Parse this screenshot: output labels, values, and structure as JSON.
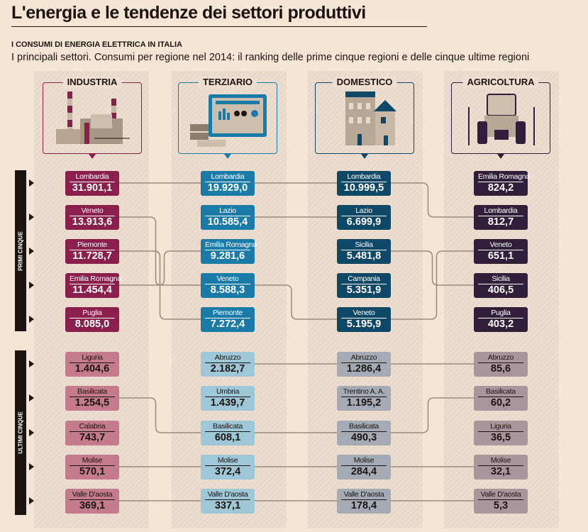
{
  "header": {
    "title": "L'energia e le tendenze dei settori produttivi",
    "kicker": "I CONSUMI DI ENERGIA ELETTRICA IN ITALIA",
    "subtitle": "I principali settori. Consumi per regione nel 2014: il ranking delle prime cinque regioni e delle cinque ultime regioni"
  },
  "groups": {
    "top": "PRIMI CINQUE",
    "bottom": "ULTIMI CINQUE"
  },
  "chart_data": {
    "type": "table",
    "title": "I consumi di energia elettrica in Italia",
    "sectors": [
      {
        "name": "INDUSTRIA",
        "icon": "factory-icon",
        "color_top": "#8a1f4c",
        "color_bottom": "#c47b8c",
        "top": [
          {
            "region": "Lombardia",
            "value": "31.901,1"
          },
          {
            "region": "Veneto",
            "value": "13.913,6"
          },
          {
            "region": "Piemonte",
            "value": "11.728,7"
          },
          {
            "region": "Emilia Romagna",
            "value": "11.454,4"
          },
          {
            "region": "Puglia",
            "value": "8.085,0"
          }
        ],
        "bottom": [
          {
            "region": "Liguria",
            "value": "1.404,6"
          },
          {
            "region": "Basilicata",
            "value": "1.254,5"
          },
          {
            "region": "Calabria",
            "value": "743,7"
          },
          {
            "region": "Molise",
            "value": "570,1"
          },
          {
            "region": "Valle D'aosta",
            "value": "369,1"
          }
        ]
      },
      {
        "name": "TERZIARIO",
        "icon": "office-computer-icon",
        "color_top": "#1a7ba9",
        "color_bottom": "#9ec7d7",
        "top": [
          {
            "region": "Lombardia",
            "value": "19.929,0"
          },
          {
            "region": "Lazio",
            "value": "10.585,4"
          },
          {
            "region": "Emilia Romagna",
            "value": "9.281,6"
          },
          {
            "region": "Veneto",
            "value": "8.588,3"
          },
          {
            "region": "Piemonte",
            "value": "7.272,4"
          }
        ],
        "bottom": [
          {
            "region": "Abruzzo",
            "value": "2.182,7"
          },
          {
            "region": "Umbria",
            "value": "1.439,7"
          },
          {
            "region": "Basilicata",
            "value": "608,1"
          },
          {
            "region": "Molise",
            "value": "372,4"
          },
          {
            "region": "Valle D'aosta",
            "value": "337,1"
          }
        ]
      },
      {
        "name": "DOMESTICO",
        "icon": "house-icon",
        "color_top": "#0f4866",
        "color_bottom": "#a4abb4",
        "top": [
          {
            "region": "Lombardia",
            "value": "10.999,5"
          },
          {
            "region": "Lazio",
            "value": "6.699,9"
          },
          {
            "region": "Sicilia",
            "value": "5.481,8"
          },
          {
            "region": "Campania",
            "value": "5.351,9"
          },
          {
            "region": "Veneto",
            "value": "5.195,9"
          }
        ],
        "bottom": [
          {
            "region": "Abruzzo",
            "value": "1.286,4"
          },
          {
            "region": "Trentino A. A.",
            "value": "1.195,2"
          },
          {
            "region": "Basilicata",
            "value": "490,3"
          },
          {
            "region": "Molise",
            "value": "284,4"
          },
          {
            "region": "Valle D'aosta",
            "value": "178,4"
          }
        ]
      },
      {
        "name": "AGRICOLTURA",
        "icon": "tractor-icon",
        "color_top": "#2f1f3b",
        "color_bottom": "#ab959c",
        "top": [
          {
            "region": "Emilia Romagna",
            "value": "824,2"
          },
          {
            "region": "Lombardia",
            "value": "812,7"
          },
          {
            "region": "Veneto",
            "value": "651,1"
          },
          {
            "region": "Sicilia",
            "value": "406,5"
          },
          {
            "region": "Puglia",
            "value": "403,2"
          }
        ],
        "bottom": [
          {
            "region": "Abruzzo",
            "value": "85,6"
          },
          {
            "region": "Basilicata",
            "value": "60,2"
          },
          {
            "region": "Liguria",
            "value": "36,5"
          },
          {
            "region": "Molise",
            "value": "32,1"
          },
          {
            "region": "Valle D'aosta",
            "value": "5,3"
          }
        ]
      }
    ]
  }
}
